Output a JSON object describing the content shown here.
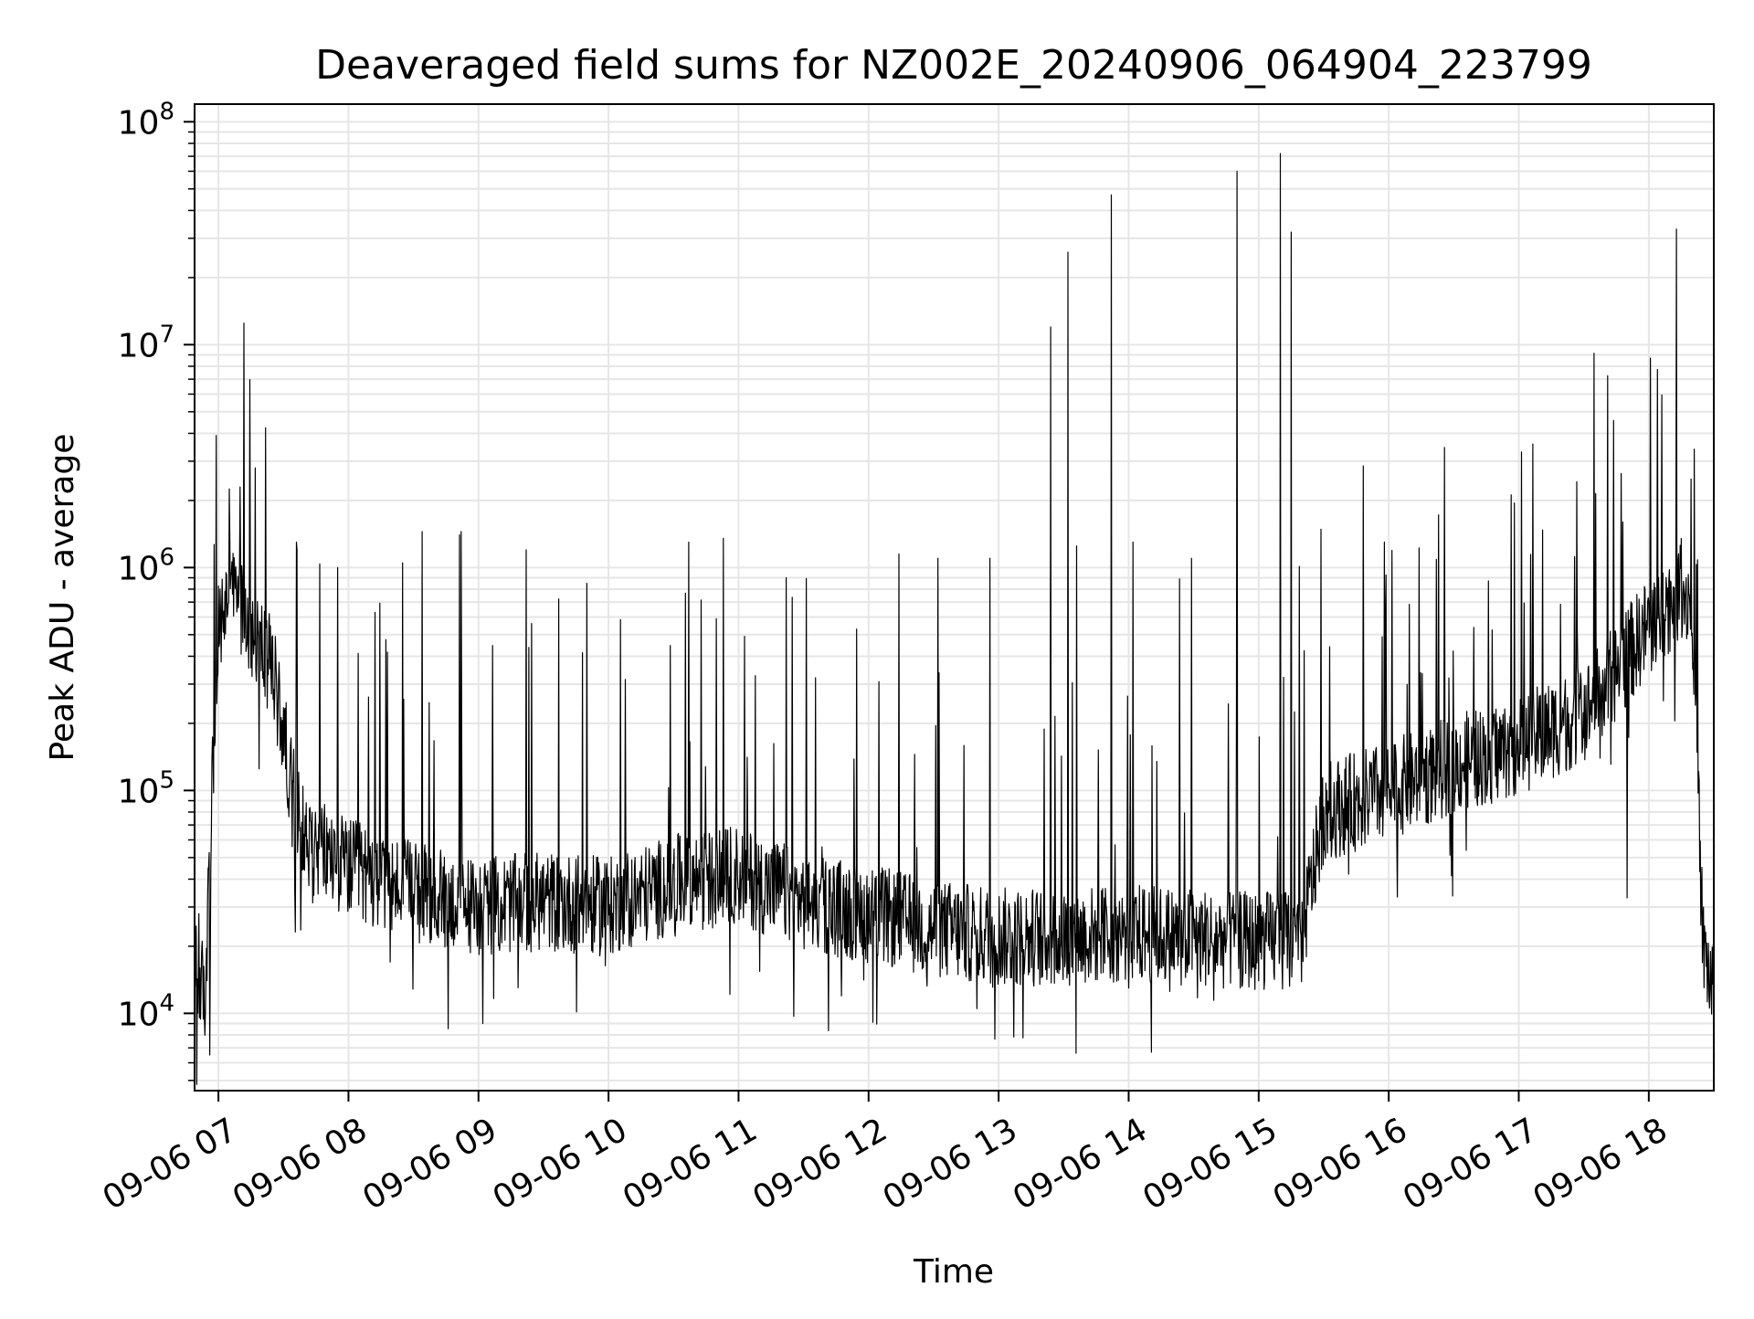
{
  "chart_data": {
    "type": "line",
    "title": "Deaveraged field sums for NZ002E_20240906_064904_223799",
    "xlabel": "Time",
    "ylabel": "Peak ADU - average",
    "yscale": "log",
    "ylim": [
      4500,
      120000000
    ],
    "xlim": [
      "2024-09-06 06:49",
      "2024-09-06 18:30"
    ],
    "grid": true,
    "line_color": "#000000",
    "grid_color": "#e6e6e6",
    "x_tick_labels": [
      "09-06 07",
      "09-06 08",
      "09-06 09",
      "09-06 10",
      "09-06 11",
      "09-06 12",
      "09-06 13",
      "09-06 14",
      "09-06 15",
      "09-06 16",
      "09-06 17",
      "09-06 18"
    ],
    "y_ticks": [
      {
        "base": "10",
        "exp": "4"
      },
      {
        "base": "10",
        "exp": "5"
      },
      {
        "base": "10",
        "exp": "6"
      },
      {
        "base": "10",
        "exp": "7"
      },
      {
        "base": "10",
        "exp": "8"
      }
    ],
    "series": [
      {
        "baseline": [
          [
            "2024-09-06 06:50",
            15000
          ],
          [
            "2024-09-06 06:54",
            12000
          ],
          [
            "2024-09-06 06:57",
            100000
          ],
          [
            "2024-09-06 07:00",
            500000
          ],
          [
            "2024-09-06 07:05",
            800000
          ],
          [
            "2024-09-06 07:10",
            700000
          ],
          [
            "2024-09-06 07:15",
            550000
          ],
          [
            "2024-09-06 07:25",
            350000
          ],
          [
            "2024-09-06 07:30",
            180000
          ],
          [
            "2024-09-06 07:35",
            90000
          ],
          [
            "2024-09-06 07:40",
            60000
          ],
          [
            "2024-09-06 08:00",
            45000
          ],
          [
            "2024-09-06 08:30",
            35000
          ],
          [
            "2024-09-06 09:00",
            30000
          ],
          [
            "2024-09-06 09:30",
            32000
          ],
          [
            "2024-09-06 10:00",
            30000
          ],
          [
            "2024-09-06 10:30",
            38000
          ],
          [
            "2024-09-06 11:00",
            42000
          ],
          [
            "2024-09-06 11:30",
            32000
          ],
          [
            "2024-09-06 12:00",
            28000
          ],
          [
            "2024-09-06 12:30",
            24000
          ],
          [
            "2024-09-06 13:00",
            22000
          ],
          [
            "2024-09-06 13:30",
            22000
          ],
          [
            "2024-09-06 14:00",
            23000
          ],
          [
            "2024-09-06 14:30",
            22000
          ],
          [
            "2024-09-06 15:00",
            21000
          ],
          [
            "2024-09-06 15:20",
            22000
          ],
          [
            "2024-09-06 15:30",
            80000
          ],
          [
            "2024-09-06 16:00",
            100000
          ],
          [
            "2024-09-06 16:30",
            130000
          ],
          [
            "2024-09-06 17:00",
            160000
          ],
          [
            "2024-09-06 17:30",
            220000
          ],
          [
            "2024-09-06 17:50",
            400000
          ],
          [
            "2024-09-06 18:00",
            550000
          ],
          [
            "2024-09-06 18:15",
            800000
          ],
          [
            "2024-09-06 18:20",
            700000
          ],
          [
            "2024-09-06 18:25",
            20000
          ],
          [
            "2024-09-06 18:30",
            12000
          ]
        ],
        "peaks": [
          [
            "2024-09-06 06:51",
            28000
          ],
          [
            "2024-09-06 06:56",
            6500
          ],
          [
            "2024-09-06 06:50",
            4800
          ],
          [
            "2024-09-06 07:10",
            2300000
          ],
          [
            "2024-09-06 07:17",
            2800000
          ],
          [
            "2024-09-06 07:36",
            1300000
          ],
          [
            "2024-09-06 07:55",
            1000000
          ],
          [
            "2024-09-06 08:25",
            1050000
          ],
          [
            "2024-09-06 08:34",
            1450000
          ],
          [
            "2024-09-06 08:52",
            1450000
          ],
          [
            "2024-09-06 09:22",
            1200000
          ],
          [
            "2024-09-06 09:50",
            850000
          ],
          [
            "2024-09-06 10:37",
            1300000
          ],
          [
            "2024-09-06 10:53",
            1350000
          ],
          [
            "2024-09-06 11:22",
            900000
          ],
          [
            "2024-09-06 12:14",
            1150000
          ],
          [
            "2024-09-06 12:32",
            1100000
          ],
          [
            "2024-09-06 12:56",
            1100000
          ],
          [
            "2024-09-06 13:24",
            12000000
          ],
          [
            "2024-09-06 13:32",
            26000000
          ],
          [
            "2024-09-06 13:36",
            1250000
          ],
          [
            "2024-09-06 13:52",
            47000000
          ],
          [
            "2024-09-06 14:02",
            1300000
          ],
          [
            "2024-09-06 14:29",
            1100000
          ],
          [
            "2024-09-06 14:50",
            60000000
          ],
          [
            "2024-09-06 15:10",
            72000000
          ],
          [
            "2024-09-06 15:15",
            32000000
          ],
          [
            "2024-09-06 15:58",
            1300000
          ],
          [
            "2024-09-06 16:58",
            1950000
          ],
          [
            "2024-09-06 17:48",
            1600000
          ],
          [
            "2024-09-06 18:15",
            1350000
          ],
          [
            "2024-09-06 18:21",
            3400000
          ]
        ],
        "lows": [
          [
            "2024-09-06 12:50",
            10500
          ],
          [
            "2024-09-06 14:00",
            13000
          ],
          [
            "2024-09-06 15:00",
            14000
          ],
          [
            "2024-09-06 17:50",
            33000
          ],
          [
            "2024-09-06 18:30",
            9500
          ]
        ]
      }
    ]
  }
}
